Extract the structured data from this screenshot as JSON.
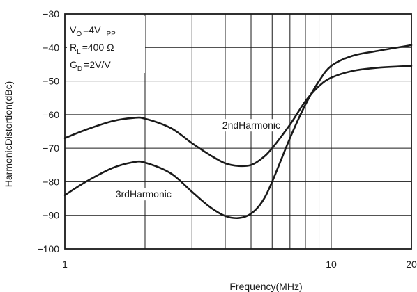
{
  "chart_data": {
    "type": "line",
    "xlabel": "Frequency(MHz)",
    "ylabel": "HarmonicDistortion(dBc)",
    "x_scale": "log",
    "xlim": [
      1,
      20
    ],
    "ylim": [
      -100,
      -30
    ],
    "x_ticks": [
      {
        "value": 1,
        "label": "1"
      },
      {
        "value": 10,
        "label": "10"
      },
      {
        "value": 20,
        "label": "20"
      }
    ],
    "y_ticks": [
      {
        "value": -30,
        "label": "−30"
      },
      {
        "value": -40,
        "label": "−40"
      },
      {
        "value": -50,
        "label": "−50"
      },
      {
        "value": -60,
        "label": "−60"
      },
      {
        "value": -70,
        "label": "−70"
      },
      {
        "value": -80,
        "label": "−80"
      },
      {
        "value": -90,
        "label": "−90"
      },
      {
        "value": -100,
        "label": "−100"
      }
    ],
    "grid": true,
    "conditions": [
      {
        "main": "V",
        "sub": "O",
        "rest": "=4V",
        "sub2": "PP"
      },
      {
        "main": "R",
        "sub": "L",
        "rest": "=400  Ω",
        "sub2": ""
      },
      {
        "main": "G",
        "sub": "D",
        "rest": "=2V/V",
        "sub2": ""
      }
    ],
    "series": [
      {
        "name": "2ndHarmonic",
        "x": [
          1,
          1.2,
          1.5,
          1.8,
          2.0,
          2.5,
          3.0,
          3.5,
          4.0,
          4.5,
          5.0,
          5.5,
          6.0,
          7.0,
          8.0,
          9.0,
          10.0,
          12.0,
          15.0,
          20.0
        ],
        "y": [
          -67,
          -64.5,
          -62,
          -61,
          -61.2,
          -64,
          -68.5,
          -72,
          -74.5,
          -75.3,
          -75,
          -73,
          -70,
          -63,
          -56,
          -51.5,
          -49,
          -47,
          -46,
          -45.5
        ]
      },
      {
        "name": "3rdHarmonic",
        "x": [
          1,
          1.2,
          1.5,
          1.8,
          2.0,
          2.5,
          3.0,
          3.5,
          4.0,
          4.5,
          5.0,
          5.5,
          6.0,
          7.0,
          8.0,
          9.0,
          10.0,
          12.0,
          15.0,
          20.0
        ],
        "y": [
          -84,
          -80,
          -76,
          -74.2,
          -74.3,
          -77.5,
          -83,
          -87.5,
          -90.2,
          -90.8,
          -89.5,
          -86,
          -80,
          -67,
          -57,
          -50,
          -45.5,
          -42.5,
          -41,
          -39.3
        ]
      }
    ],
    "annotations": [
      {
        "text": "2ndHarmonic",
        "x": 3.9,
        "y": -64
      },
      {
        "text": "3rdHarmonic",
        "x": 1.55,
        "y": -84.5
      }
    ]
  }
}
